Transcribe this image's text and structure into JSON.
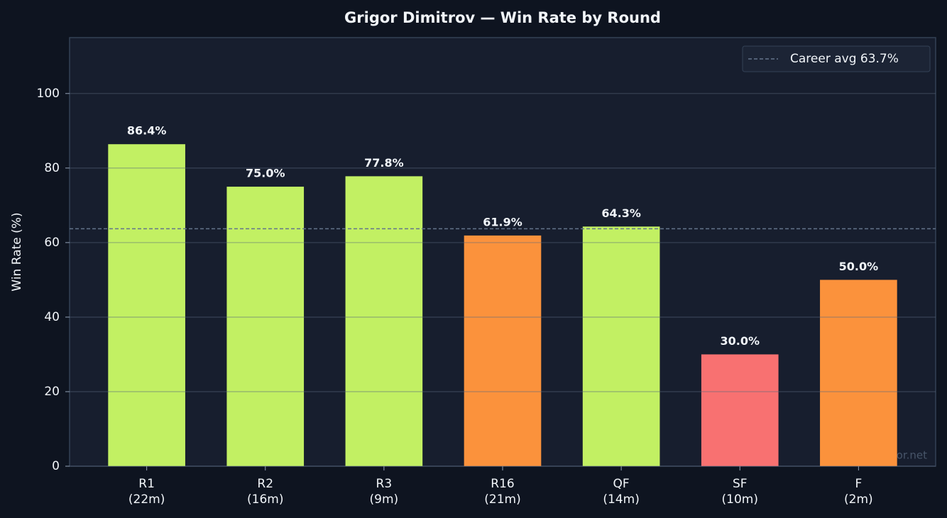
{
  "chart_data": {
    "type": "bar",
    "title": "Grigor Dimitrov — Win Rate by Round",
    "ylabel": "Win Rate (%)",
    "categories": [
      "R1\n(22m)",
      "R2\n(16m)",
      "R3\n(9m)",
      "R16\n(21m)",
      "QF\n(14m)",
      "SF\n(10m)",
      "F\n(2m)"
    ],
    "values": [
      86.4,
      75.0,
      77.8,
      61.9,
      64.3,
      30.0,
      50.0
    ],
    "value_labels": [
      "86.4%",
      "75.0%",
      "77.8%",
      "61.9%",
      "64.3%",
      "30.0%",
      "50.0%"
    ],
    "colors": [
      "#c2f063",
      "#c2f063",
      "#c2f063",
      "#fb923c",
      "#c2f063",
      "#f87171",
      "#fb923c"
    ],
    "ylim": [
      0,
      115
    ],
    "yticks": [
      0,
      20,
      40,
      60,
      80,
      100
    ],
    "grid": true,
    "reference_line": {
      "value": 63.7,
      "label": "Career avg 63.7%",
      "color": "#64748b"
    },
    "legend_position": "upper right",
    "watermark": "tennispredictor.net"
  }
}
